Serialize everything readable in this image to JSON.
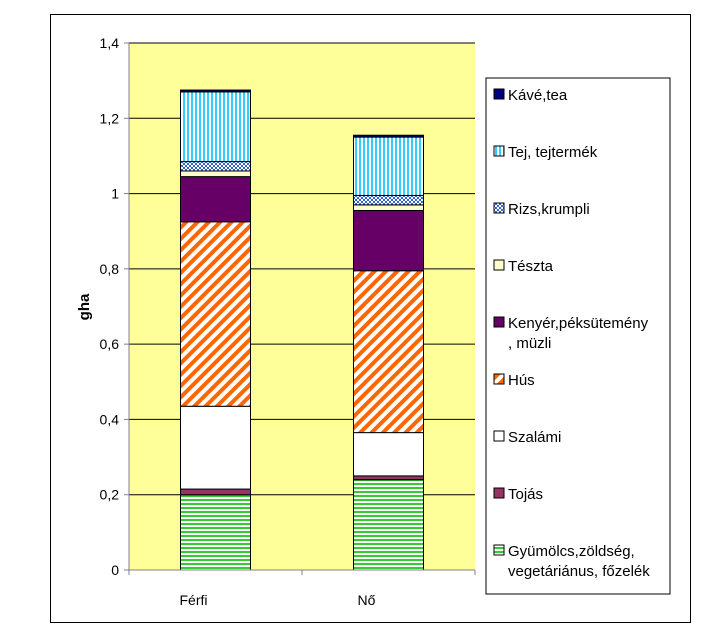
{
  "chart_data": {
    "type": "bar",
    "stacked": true,
    "title": "",
    "xlabel": "",
    "ylabel": "gha",
    "ylim": [
      0,
      1.4
    ],
    "y_ticks": [
      "0",
      "0,2",
      "0,4",
      "0,6",
      "0,8",
      "1",
      "1,2",
      "1,4"
    ],
    "grid": true,
    "legend_position": "right",
    "categories": [
      "Férfi",
      "Nő"
    ],
    "series": [
      {
        "name": "Gyümölcs,zöldség, vegetáriánus, főzelék",
        "values": [
          0.2,
          0.24
        ],
        "color": "#33cc33",
        "pattern": "hstripes"
      },
      {
        "name": "Tojás",
        "values": [
          0.015,
          0.01
        ],
        "color": "#993366",
        "pattern": "solid"
      },
      {
        "name": "Szalámi",
        "values": [
          0.22,
          0.115
        ],
        "color": "#ffffff",
        "pattern": "solid"
      },
      {
        "name": "Hús",
        "values": [
          0.49,
          0.43
        ],
        "color": "#ff6600",
        "pattern": "diagonal"
      },
      {
        "name": "Kenyér,péksütemény , müzli",
        "values": [
          0.12,
          0.16
        ],
        "color": "#660066",
        "pattern": "solid"
      },
      {
        "name": "Tészta",
        "values": [
          0.015,
          0.015
        ],
        "color": "#ffffcc",
        "pattern": "solid"
      },
      {
        "name": "Rizs,krumpli",
        "values": [
          0.025,
          0.025
        ],
        "color": "#3366cc",
        "pattern": "checker"
      },
      {
        "name": "Tej, tejtermék",
        "values": [
          0.185,
          0.155
        ],
        "color": "#33ccff",
        "pattern": "vstripes"
      },
      {
        "name": "Kávé,tea",
        "values": [
          0.005,
          0.005
        ],
        "color": "#000080",
        "pattern": "solid"
      }
    ],
    "plot_background": "#ffff99"
  }
}
